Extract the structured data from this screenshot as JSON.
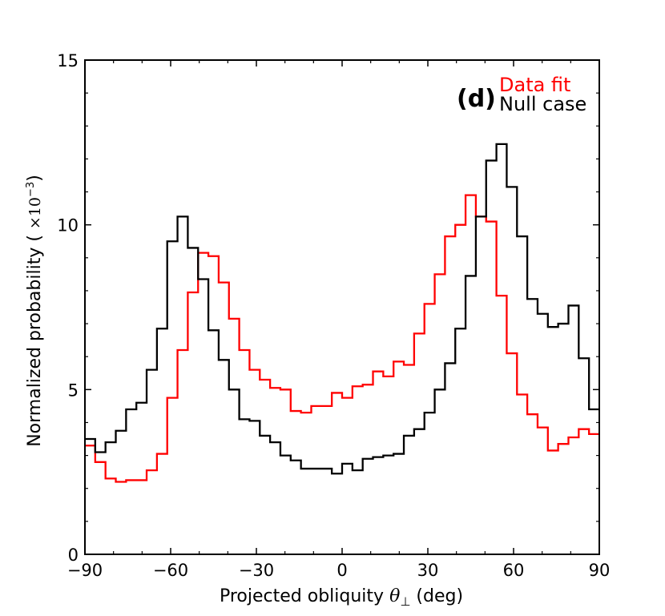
{
  "chart_data": {
    "type": "line",
    "style": "step-histogram",
    "panel_label": "(d)",
    "xlabel": "Projected obliquity",
    "xlabel_symbol": "θ",
    "xlabel_subscript": "⊥",
    "xlabel_unit": "(deg)",
    "ylabel": "Normalized probability (",
    "ylabel_factor": "×10",
    "ylabel_exponent": "−3",
    "ylabel_close": ")",
    "xlim": [
      -90,
      90
    ],
    "ylim": [
      0,
      15
    ],
    "xticks": [
      -90,
      -60,
      -30,
      0,
      30,
      60,
      90
    ],
    "xtick_labels": [
      "−90",
      "−60",
      "−30",
      "0",
      "30",
      "60",
      "90"
    ],
    "yticks": [
      0,
      5,
      10,
      15
    ],
    "ytick_labels": [
      "0",
      "5",
      "10",
      "15"
    ],
    "bin_edges": [
      -90,
      -86.4,
      -82.8,
      -79.2,
      -75.6,
      -72,
      -68.4,
      -64.8,
      -61.2,
      -57.6,
      -54,
      -50.4,
      -46.8,
      -43.2,
      -39.6,
      -36,
      -32.4,
      -28.8,
      -25.2,
      -21.6,
      -18,
      -14.4,
      -10.8,
      -7.2,
      -3.6,
      0,
      3.6,
      7.2,
      10.8,
      14.4,
      18,
      21.6,
      25.2,
      28.8,
      32.4,
      36,
      39.6,
      43.2,
      46.8,
      50.4,
      54,
      57.6,
      61.2,
      64.8,
      68.4,
      72,
      75.6,
      79.2,
      82.8,
      86.4,
      90
    ],
    "series": [
      {
        "name": "Data fit",
        "color": "#ff0000",
        "values": [
          3.3,
          2.8,
          2.3,
          2.2,
          2.25,
          2.25,
          2.55,
          3.05,
          4.75,
          6.2,
          7.95,
          9.15,
          9.05,
          8.25,
          7.15,
          6.2,
          5.6,
          5.3,
          5.05,
          5.0,
          4.35,
          4.3,
          4.5,
          4.5,
          4.9,
          4.75,
          5.1,
          5.15,
          5.55,
          5.4,
          5.85,
          5.75,
          6.7,
          7.6,
          8.5,
          9.65,
          10.0,
          10.9,
          10.25,
          10.1,
          7.85,
          6.1,
          4.85,
          4.25,
          3.85,
          3.15,
          3.35,
          3.55,
          3.8,
          3.65
        ]
      },
      {
        "name": "Null case",
        "color": "#000000",
        "values": [
          3.5,
          3.1,
          3.4,
          3.75,
          4.4,
          4.6,
          5.6,
          6.85,
          9.5,
          10.25,
          9.3,
          8.35,
          6.8,
          5.9,
          5.0,
          4.1,
          4.05,
          3.6,
          3.4,
          3.0,
          2.85,
          2.6,
          2.6,
          2.6,
          2.45,
          2.75,
          2.55,
          2.9,
          2.95,
          3.0,
          3.05,
          3.6,
          3.8,
          4.3,
          5.0,
          5.8,
          6.85,
          8.45,
          10.25,
          11.95,
          12.45,
          11.15,
          9.65,
          7.75,
          7.3,
          6.9,
          7.0,
          7.55,
          5.95,
          4.4
        ]
      }
    ],
    "legend": {
      "position": "top-right",
      "entries": [
        "Data fit",
        "Null case"
      ]
    }
  }
}
